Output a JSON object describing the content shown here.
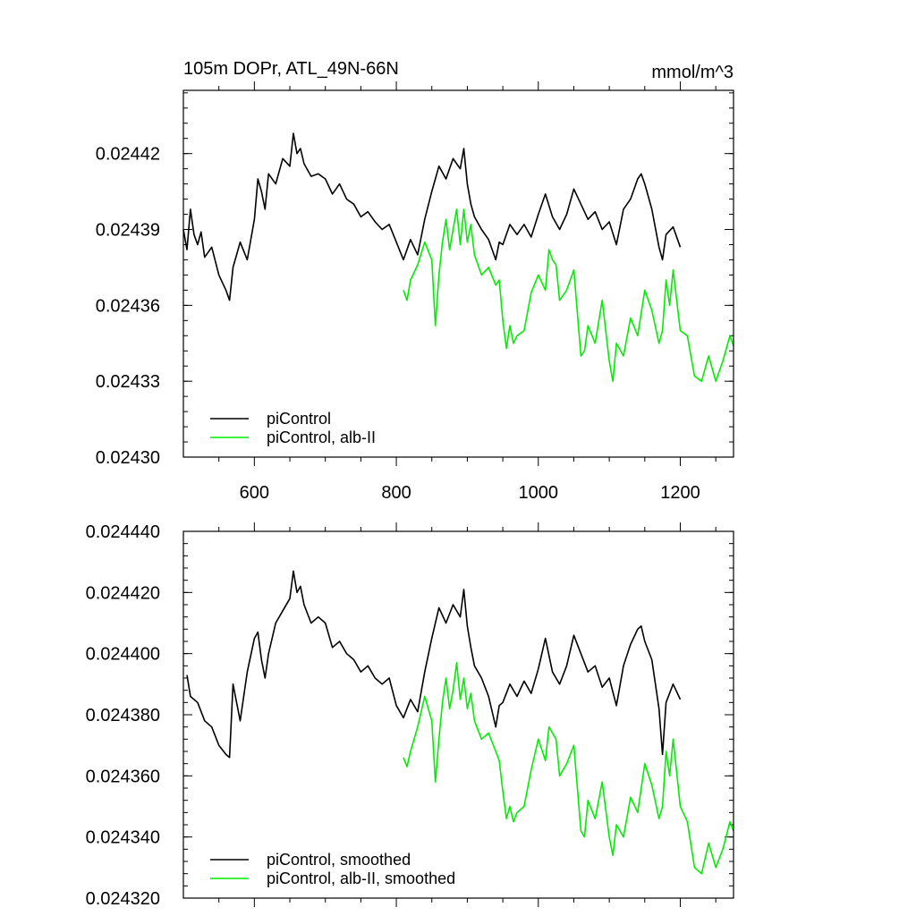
{
  "colors": {
    "control": "#000000",
    "alb": "#00ee00"
  },
  "chart_data": [
    {
      "type": "line",
      "title": "105m DOPr, ATL_49N-66N",
      "units": "mmol/m^3",
      "xlim": [
        500,
        1275
      ],
      "ylim": [
        0.0243,
        0.024445
      ],
      "x_ticks": [
        600,
        800,
        1000,
        1200
      ],
      "y_ticks": [
        "0.02430",
        "0.02433",
        "0.02436",
        "0.02439",
        "0.02442"
      ],
      "legend_position": "bottom-left",
      "series": [
        {
          "name": "piControl",
          "color": "#000000",
          "x": [
            500,
            505,
            510,
            515,
            520,
            525,
            530,
            540,
            550,
            560,
            565,
            570,
            580,
            590,
            600,
            605,
            610,
            615,
            620,
            630,
            640,
            650,
            655,
            660,
            665,
            670,
            680,
            690,
            700,
            710,
            720,
            730,
            740,
            750,
            760,
            770,
            780,
            790,
            800,
            810,
            820,
            830,
            840,
            850,
            860,
            870,
            880,
            890,
            895,
            900,
            905,
            910,
            920,
            930,
            940,
            945,
            950,
            960,
            970,
            980,
            990,
            1000,
            1010,
            1020,
            1030,
            1040,
            1050,
            1060,
            1070,
            1080,
            1090,
            1100,
            1110,
            1120,
            1130,
            1140,
            1145,
            1150,
            1160,
            1170,
            1175,
            1180,
            1190,
            1200
          ],
          "y": [
            0.02439,
            0.024382,
            0.024398,
            0.024388,
            0.024384,
            0.024389,
            0.024379,
            0.024383,
            0.024372,
            0.024366,
            0.024362,
            0.024375,
            0.024385,
            0.024378,
            0.024394,
            0.02441,
            0.024405,
            0.024398,
            0.024412,
            0.024408,
            0.024418,
            0.024415,
            0.024428,
            0.02442,
            0.024422,
            0.024416,
            0.024411,
            0.024412,
            0.02441,
            0.024404,
            0.024408,
            0.024402,
            0.0244,
            0.024395,
            0.024397,
            0.024393,
            0.02439,
            0.024392,
            0.024385,
            0.024378,
            0.024386,
            0.02438,
            0.024394,
            0.024405,
            0.024415,
            0.02441,
            0.024418,
            0.024414,
            0.024422,
            0.024408,
            0.0244,
            0.024395,
            0.02439,
            0.024386,
            0.024378,
            0.024385,
            0.024384,
            0.024392,
            0.024388,
            0.024392,
            0.024387,
            0.024396,
            0.024404,
            0.024395,
            0.02439,
            0.024396,
            0.024406,
            0.0244,
            0.024394,
            0.024397,
            0.02439,
            0.024393,
            0.024384,
            0.024398,
            0.024402,
            0.02441,
            0.024412,
            0.024408,
            0.024398,
            0.024383,
            0.024378,
            0.024388,
            0.024391,
            0.024383
          ]
        },
        {
          "name": "piControl, alb-II",
          "color": "#00ee00",
          "x": [
            810,
            815,
            820,
            830,
            840,
            850,
            855,
            860,
            865,
            870,
            875,
            880,
            885,
            890,
            895,
            900,
            905,
            910,
            920,
            930,
            940,
            945,
            950,
            955,
            960,
            965,
            970,
            980,
            990,
            1000,
            1010,
            1015,
            1020,
            1025,
            1030,
            1040,
            1050,
            1060,
            1065,
            1070,
            1080,
            1090,
            1100,
            1105,
            1110,
            1120,
            1130,
            1140,
            1150,
            1160,
            1170,
            1175,
            1180,
            1185,
            1190,
            1200,
            1210,
            1220,
            1230,
            1240,
            1250,
            1260,
            1270,
            1275
          ],
          "y": [
            0.024366,
            0.024362,
            0.02437,
            0.024376,
            0.024385,
            0.024378,
            0.024352,
            0.024372,
            0.024385,
            0.024394,
            0.024382,
            0.02439,
            0.024398,
            0.024384,
            0.024398,
            0.024385,
            0.024392,
            0.02438,
            0.024372,
            0.024375,
            0.024368,
            0.02437,
            0.024354,
            0.024343,
            0.024352,
            0.024345,
            0.024348,
            0.02435,
            0.024365,
            0.024372,
            0.024366,
            0.024382,
            0.024378,
            0.024376,
            0.024362,
            0.024366,
            0.024374,
            0.02434,
            0.024342,
            0.024352,
            0.024345,
            0.024362,
            0.024338,
            0.02433,
            0.024345,
            0.02434,
            0.024355,
            0.024348,
            0.024366,
            0.024358,
            0.024345,
            0.02435,
            0.02437,
            0.02436,
            0.024374,
            0.02435,
            0.024348,
            0.024332,
            0.02433,
            0.02434,
            0.02433,
            0.024338,
            0.024348,
            0.024344
          ]
        }
      ]
    },
    {
      "type": "line",
      "title": "",
      "xlim": [
        500,
        1275
      ],
      "ylim": [
        0.02432,
        0.02444
      ],
      "x_ticks": [
        600,
        800,
        1000,
        1200
      ],
      "y_ticks": [
        "0.024320",
        "0.024340",
        "0.024360",
        "0.024380",
        "0.024400",
        "0.024420",
        "0.024440"
      ],
      "legend_position": "bottom-left",
      "series": [
        {
          "name": "piControl, smoothed",
          "color": "#000000",
          "x": [
            505,
            510,
            520,
            530,
            540,
            550,
            560,
            565,
            570,
            575,
            580,
            590,
            600,
            605,
            610,
            615,
            620,
            630,
            640,
            650,
            655,
            660,
            665,
            670,
            680,
            690,
            700,
            710,
            720,
            730,
            740,
            750,
            760,
            770,
            780,
            790,
            800,
            810,
            820,
            830,
            840,
            850,
            860,
            870,
            880,
            890,
            895,
            900,
            905,
            910,
            920,
            930,
            940,
            945,
            950,
            960,
            970,
            980,
            990,
            1000,
            1010,
            1020,
            1030,
            1040,
            1050,
            1060,
            1070,
            1080,
            1090,
            1100,
            1110,
            1120,
            1130,
            1140,
            1145,
            1150,
            1160,
            1170,
            1175,
            1180,
            1190,
            1200
          ],
          "y": [
            0.024393,
            0.024386,
            0.024384,
            0.024378,
            0.024376,
            0.02437,
            0.024367,
            0.024366,
            0.02439,
            0.024384,
            0.024378,
            0.024394,
            0.024405,
            0.024407,
            0.024398,
            0.024392,
            0.0244,
            0.02441,
            0.024414,
            0.024418,
            0.024427,
            0.02442,
            0.024422,
            0.024416,
            0.02441,
            0.024412,
            0.02441,
            0.024402,
            0.024404,
            0.0244,
            0.024398,
            0.024394,
            0.024396,
            0.024392,
            0.02439,
            0.024392,
            0.024383,
            0.024379,
            0.024385,
            0.024381,
            0.024394,
            0.024405,
            0.024415,
            0.02441,
            0.024416,
            0.024412,
            0.024421,
            0.024409,
            0.024402,
            0.024396,
            0.024392,
            0.024386,
            0.024376,
            0.024383,
            0.024384,
            0.02439,
            0.024386,
            0.024391,
            0.024387,
            0.024395,
            0.024405,
            0.024394,
            0.02439,
            0.024396,
            0.024406,
            0.0244,
            0.024394,
            0.024396,
            0.024389,
            0.024392,
            0.024383,
            0.024396,
            0.024403,
            0.024408,
            0.024409,
            0.024404,
            0.024398,
            0.024382,
            0.024367,
            0.024384,
            0.02439,
            0.024385
          ]
        },
        {
          "name": "piControl, alb-II, smoothed",
          "color": "#00ee00",
          "x": [
            810,
            815,
            820,
            830,
            840,
            850,
            855,
            860,
            865,
            870,
            875,
            880,
            885,
            890,
            895,
            900,
            905,
            910,
            920,
            930,
            940,
            945,
            950,
            955,
            960,
            965,
            970,
            980,
            990,
            1000,
            1010,
            1015,
            1020,
            1025,
            1030,
            1040,
            1050,
            1060,
            1065,
            1070,
            1080,
            1090,
            1100,
            1105,
            1110,
            1120,
            1130,
            1140,
            1150,
            1160,
            1170,
            1175,
            1180,
            1185,
            1190,
            1200,
            1210,
            1220,
            1230,
            1240,
            1250,
            1260,
            1270,
            1275
          ],
          "y": [
            0.024366,
            0.024363,
            0.024368,
            0.024376,
            0.024386,
            0.024378,
            0.024358,
            0.024372,
            0.024384,
            0.024392,
            0.024382,
            0.024388,
            0.024397,
            0.024385,
            0.024392,
            0.024382,
            0.024387,
            0.024378,
            0.024372,
            0.024374,
            0.024368,
            0.024365,
            0.024355,
            0.024346,
            0.02435,
            0.024345,
            0.024348,
            0.02435,
            0.024362,
            0.024372,
            0.024365,
            0.024376,
            0.024374,
            0.024372,
            0.02436,
            0.024364,
            0.02437,
            0.024342,
            0.02434,
            0.024352,
            0.024346,
            0.024358,
            0.02434,
            0.024334,
            0.024344,
            0.02434,
            0.024353,
            0.024348,
            0.024364,
            0.024357,
            0.024346,
            0.02435,
            0.024368,
            0.02436,
            0.024372,
            0.02435,
            0.024345,
            0.02433,
            0.024328,
            0.024338,
            0.02433,
            0.024336,
            0.024345,
            0.024342
          ]
        }
      ]
    }
  ]
}
